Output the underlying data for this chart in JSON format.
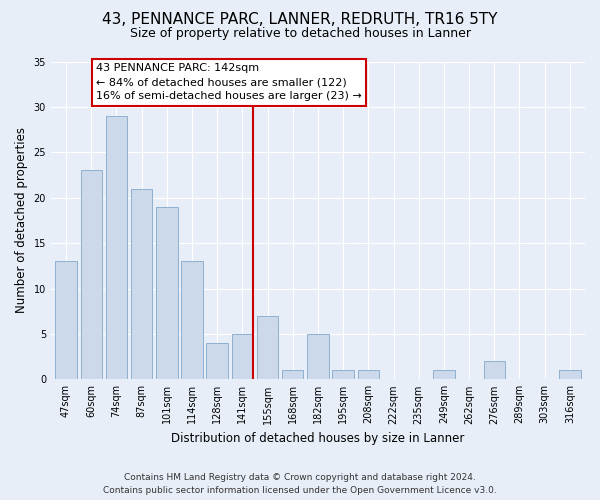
{
  "title": "43, PENNANCE PARC, LANNER, REDRUTH, TR16 5TY",
  "subtitle": "Size of property relative to detached houses in Lanner",
  "xlabel": "Distribution of detached houses by size in Lanner",
  "ylabel": "Number of detached properties",
  "bar_labels": [
    "47sqm",
    "60sqm",
    "74sqm",
    "87sqm",
    "101sqm",
    "114sqm",
    "128sqm",
    "141sqm",
    "155sqm",
    "168sqm",
    "182sqm",
    "195sqm",
    "208sqm",
    "222sqm",
    "235sqm",
    "249sqm",
    "262sqm",
    "276sqm",
    "289sqm",
    "303sqm",
    "316sqm"
  ],
  "bar_values": [
    13,
    23,
    29,
    21,
    19,
    13,
    4,
    5,
    7,
    1,
    5,
    1,
    1,
    0,
    0,
    1,
    0,
    2,
    0,
    0,
    1
  ],
  "bar_color": "#ccd9ea",
  "bar_edgecolor": "#8fb0d0",
  "vline_color": "#cc0000",
  "annotation_title": "43 PENNANCE PARC: 142sqm",
  "annotation_line1": "← 84% of detached houses are smaller (122)",
  "annotation_line2": "16% of semi-detached houses are larger (23) →",
  "annotation_box_edgecolor": "#cc0000",
  "ylim": [
    0,
    35
  ],
  "yticks": [
    0,
    5,
    10,
    15,
    20,
    25,
    30,
    35
  ],
  "footer1": "Contains HM Land Registry data © Crown copyright and database right 2024.",
  "footer2": "Contains public sector information licensed under the Open Government Licence v3.0.",
  "bg_color": "#e8eef8",
  "plot_bg_color": "#e8eef8",
  "grid_color": "#ffffff",
  "title_fontsize": 11,
  "subtitle_fontsize": 9,
  "axis_label_fontsize": 8.5,
  "tick_fontsize": 7,
  "annotation_fontsize": 8,
  "footer_fontsize": 6.5
}
